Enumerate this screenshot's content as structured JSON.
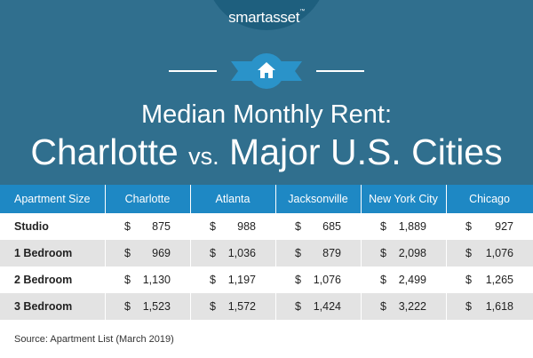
{
  "brand": {
    "name": "smartasset",
    "trademark": "™"
  },
  "title": {
    "line1": "Median Monthly Rent:",
    "line2_a": "Charlotte ",
    "line2_vs": "vs.",
    "line2_b": " Major U.S. Cities"
  },
  "icons": {
    "center": "home-icon"
  },
  "colors": {
    "header_bg": "#306f8e",
    "table_header_bg": "#1e88c4",
    "accent": "#2a93c9",
    "alt_row": "#e3e3e3"
  },
  "table": {
    "columns": [
      "Apartment Size",
      "Charlotte",
      "Atlanta",
      "Jacksonville",
      "New York City",
      "Chicago"
    ],
    "rows": [
      {
        "label": "Studio",
        "values": [
          "875",
          "988",
          "685",
          "1,889",
          "927"
        ]
      },
      {
        "label": "1 Bedroom",
        "values": [
          "969",
          "1,036",
          "879",
          "2,098",
          "1,076"
        ]
      },
      {
        "label": "2 Bedroom",
        "values": [
          "1,130",
          "1,197",
          "1,076",
          "2,499",
          "1,265"
        ]
      },
      {
        "label": "3 Bedroom",
        "values": [
          "1,523",
          "1,572",
          "1,424",
          "3,222",
          "1,618"
        ]
      }
    ],
    "currency": "$"
  },
  "source": "Source: Apartment List (March 2019)"
}
